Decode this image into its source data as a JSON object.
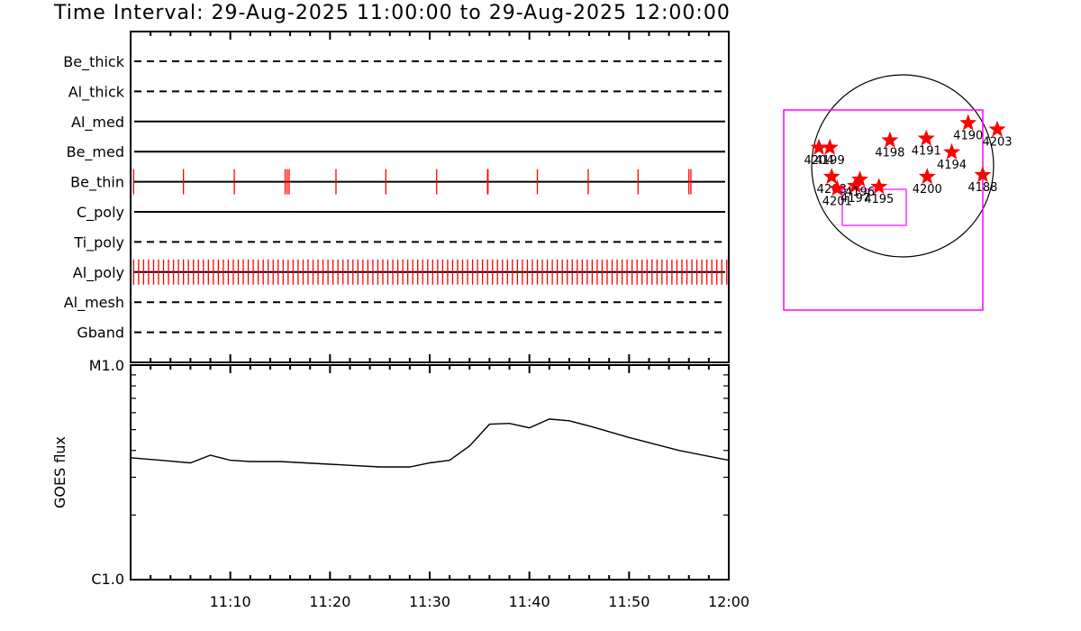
{
  "title": "Time Interval: 29-Aug-2025 11:00:00 to 29-Aug-2025 12:00:00",
  "chart_data": [
    {
      "type": "event-timeline",
      "x_range_minutes": [
        0,
        60
      ],
      "x_ticks": [
        "11:10",
        "11:20",
        "11:30",
        "11:40",
        "11:50",
        "12:00"
      ],
      "channels": [
        {
          "name": "Be_thick",
          "line": "dashed",
          "events": []
        },
        {
          "name": "Al_thick",
          "line": "dashed",
          "events": []
        },
        {
          "name": "Al_med",
          "line": "solid",
          "events": []
        },
        {
          "name": "Be_med",
          "line": "solid",
          "events": []
        },
        {
          "name": "Be_thin",
          "line": "solid",
          "events": [
            0.3,
            5.3,
            10.4,
            15.5,
            15.7,
            15.9,
            20.6,
            25.6,
            30.7,
            35.8,
            35.85,
            40.8,
            45.9,
            50.9,
            56.0,
            56.2
          ]
        },
        {
          "name": "C_poly",
          "line": "solid",
          "events": []
        },
        {
          "name": "Ti_poly",
          "line": "dashed",
          "events": []
        },
        {
          "name": "Al_poly",
          "line": "solid",
          "event_interval_minutes": 0.5,
          "event_range_minutes": [
            0.3,
            59.8
          ]
        },
        {
          "name": "Al_mesh",
          "line": "dashed",
          "events": []
        },
        {
          "name": "Gband",
          "line": "dashed",
          "events": []
        }
      ]
    },
    {
      "type": "line",
      "ylabel": "GOES flux",
      "y_scale": "log",
      "y_ticks": [
        "M1.0",
        "C1.0"
      ],
      "y_range": [
        "C1.0",
        "M1.0"
      ],
      "x_ticks": [
        "11:10",
        "11:20",
        "11:30",
        "11:40",
        "11:50",
        "12:00"
      ],
      "series": [
        {
          "x": [
            0,
            3,
            6,
            8,
            10,
            12,
            15,
            20,
            25,
            28,
            30,
            32,
            34,
            36,
            38,
            40,
            42,
            44,
            46,
            50,
            55,
            60
          ],
          "y": [
            3.7,
            3.6,
            3.5,
            3.8,
            3.6,
            3.55,
            3.55,
            3.45,
            3.35,
            3.35,
            3.5,
            3.6,
            4.2,
            5.3,
            5.35,
            5.1,
            5.6,
            5.5,
            5.2,
            4.6,
            4.0,
            3.6
          ]
        }
      ]
    },
    {
      "type": "scatter",
      "title": "",
      "points": [
        {
          "label": "4204",
          "x": -0.92,
          "y": 0.2
        },
        {
          "label": "4199",
          "x": -0.8,
          "y": 0.2
        },
        {
          "label": "4198",
          "x": -0.14,
          "y": 0.28
        },
        {
          "label": "4191",
          "x": 0.26,
          "y": 0.3
        },
        {
          "label": "4190",
          "x": 0.72,
          "y": 0.47
        },
        {
          "label": "4203",
          "x": 1.04,
          "y": 0.4
        },
        {
          "label": "4194",
          "x": 0.54,
          "y": 0.15
        },
        {
          "label": "4200",
          "x": 0.27,
          "y": -0.12
        },
        {
          "label": "4188",
          "x": 0.88,
          "y": -0.1
        },
        {
          "label": "4208",
          "x": -0.78,
          "y": -0.12
        },
        {
          "label": "4201",
          "x": -0.72,
          "y": -0.25
        },
        {
          "label": "4197",
          "x": -0.52,
          "y": -0.22
        },
        {
          "label": "4196",
          "x": -0.47,
          "y": -0.15
        },
        {
          "label": "4195",
          "x": -0.26,
          "y": -0.23
        }
      ]
    }
  ],
  "colors": {
    "event": "#ff0000",
    "star": "#ff0000",
    "box": "#ff00ff",
    "axis": "#000000"
  }
}
